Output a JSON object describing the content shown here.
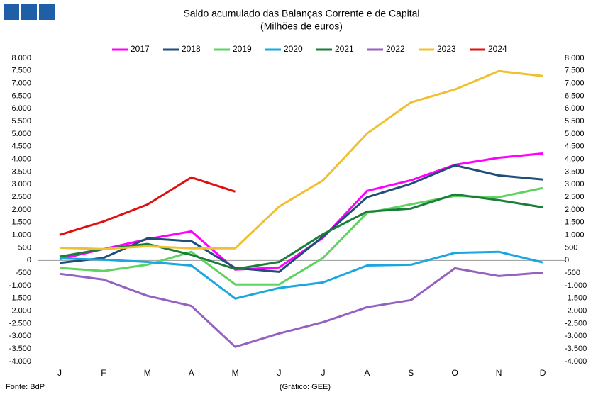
{
  "chart_data": {
    "type": "line",
    "title": "Saldo acumulado das Balanças Corrente e de Capital",
    "subtitle": "(Milhões de euros)",
    "source": "Fonte: BdP",
    "credit": "(Gráfico: GEE)",
    "categories": [
      "J",
      "F",
      "M",
      "A",
      "M",
      "J",
      "J",
      "A",
      "S",
      "O",
      "N",
      "D"
    ],
    "series": [
      {
        "name": "2017",
        "color": "#ff00ff",
        "values": [
          50,
          450,
          840,
          1150,
          -360,
          -280,
          900,
          2750,
          3170,
          3780,
          4060,
          4230
        ]
      },
      {
        "name": "2018",
        "color": "#1f4e79",
        "values": [
          -100,
          100,
          870,
          760,
          -300,
          -450,
          950,
          2500,
          3030,
          3760,
          3360,
          3200
        ]
      },
      {
        "name": "2019",
        "color": "#5fd35f",
        "values": [
          -300,
          -420,
          -170,
          340,
          -950,
          -950,
          100,
          1880,
          2220,
          2550,
          2500,
          2860
        ]
      },
      {
        "name": "2020",
        "color": "#1aa7e0",
        "values": [
          80,
          30,
          -60,
          -200,
          -1510,
          -1090,
          -870,
          -200,
          -170,
          300,
          340,
          -80
        ]
      },
      {
        "name": "2021",
        "color": "#1b7d3a",
        "values": [
          150,
          450,
          650,
          220,
          -340,
          -60,
          1040,
          1930,
          2050,
          2610,
          2380,
          2100
        ]
      },
      {
        "name": "2022",
        "color": "#9461c1",
        "values": [
          -530,
          -760,
          -1400,
          -1800,
          -3420,
          -2890,
          -2440,
          -1850,
          -1570,
          -310,
          -620,
          -480
        ]
      },
      {
        "name": "2023",
        "color": "#f0c030",
        "values": [
          500,
          450,
          560,
          480,
          480,
          2130,
          3170,
          5020,
          6250,
          6760,
          7490,
          7290
        ]
      },
      {
        "name": "2024",
        "color": "#e01010",
        "values": [
          1010,
          1540,
          2210,
          3280,
          2720,
          null,
          null,
          null,
          null,
          null,
          null,
          null
        ]
      }
    ],
    "ylim": [
      -4000,
      8000
    ],
    "yticks": [
      {
        "value": 8000,
        "label": "8.000"
      },
      {
        "value": 7500,
        "label": "7.500"
      },
      {
        "value": 7000,
        "label": "7.000"
      },
      {
        "value": 6500,
        "label": "6.500"
      },
      {
        "value": 6000,
        "label": "6.000"
      },
      {
        "value": 5500,
        "label": "5.500"
      },
      {
        "value": 5000,
        "label": "5.000"
      },
      {
        "value": 4500,
        "label": "4.500"
      },
      {
        "value": 4000,
        "label": "4.000"
      },
      {
        "value": 3500,
        "label": "3.500"
      },
      {
        "value": 3000,
        "label": "3.000"
      },
      {
        "value": 2500,
        "label": "2.500"
      },
      {
        "value": 2000,
        "label": "2.000"
      },
      {
        "value": 1500,
        "label": "1.500"
      },
      {
        "value": 1000,
        "label": "1.000"
      },
      500,
      0,
      -500,
      {
        "value": -1000,
        "label": "-1.000"
      },
      {
        "value": -1500,
        "label": "-1.500"
      },
      {
        "value": -2000,
        "label": "-2.000"
      },
      {
        "value": -2500,
        "label": "-2.500"
      },
      {
        "value": -3000,
        "label": "-3.000"
      },
      {
        "value": -3500,
        "label": "-3.500"
      },
      {
        "value": -4000,
        "label": "-4.000"
      }
    ],
    "y2lim": [
      -4000,
      8000
    ],
    "y2ticks": [
      {
        "value": 8000,
        "label": "8.000"
      },
      {
        "value": 7500,
        "label": "7.500"
      },
      {
        "value": 7000,
        "label": "7.000"
      },
      {
        "value": 6500,
        "label": "6.500"
      },
      {
        "value": 6000,
        "label": "6.000"
      },
      {
        "value": 5500,
        "label": "5.500"
      },
      {
        "value": 5000,
        "label": "5.000"
      },
      {
        "value": 4500,
        "label": "4.500"
      },
      {
        "value": 4000,
        "label": "4.000"
      },
      {
        "value": 3500,
        "label": "3.500"
      },
      {
        "value": 3000,
        "label": "3.000"
      },
      {
        "value": 2500,
        "label": "2.500"
      },
      {
        "value": 2000,
        "label": "2.000"
      },
      {
        "value": 1500,
        "label": "1.500"
      },
      {
        "value": 1000,
        "label": "1.000"
      },
      500,
      0,
      -500,
      {
        "value": -1000,
        "label": "-1.000"
      },
      {
        "value": -1500,
        "label": "-1.500"
      },
      {
        "value": -2000,
        "label": "-2.000"
      },
      {
        "value": -2500,
        "label": "-2.500"
      },
      {
        "value": -3000,
        "label": "-3.000"
      },
      {
        "value": -3500,
        "label": "-3.500"
      },
      {
        "value": -4000,
        "label": "-4.000"
      }
    ],
    "grid": false,
    "legend": "top"
  }
}
